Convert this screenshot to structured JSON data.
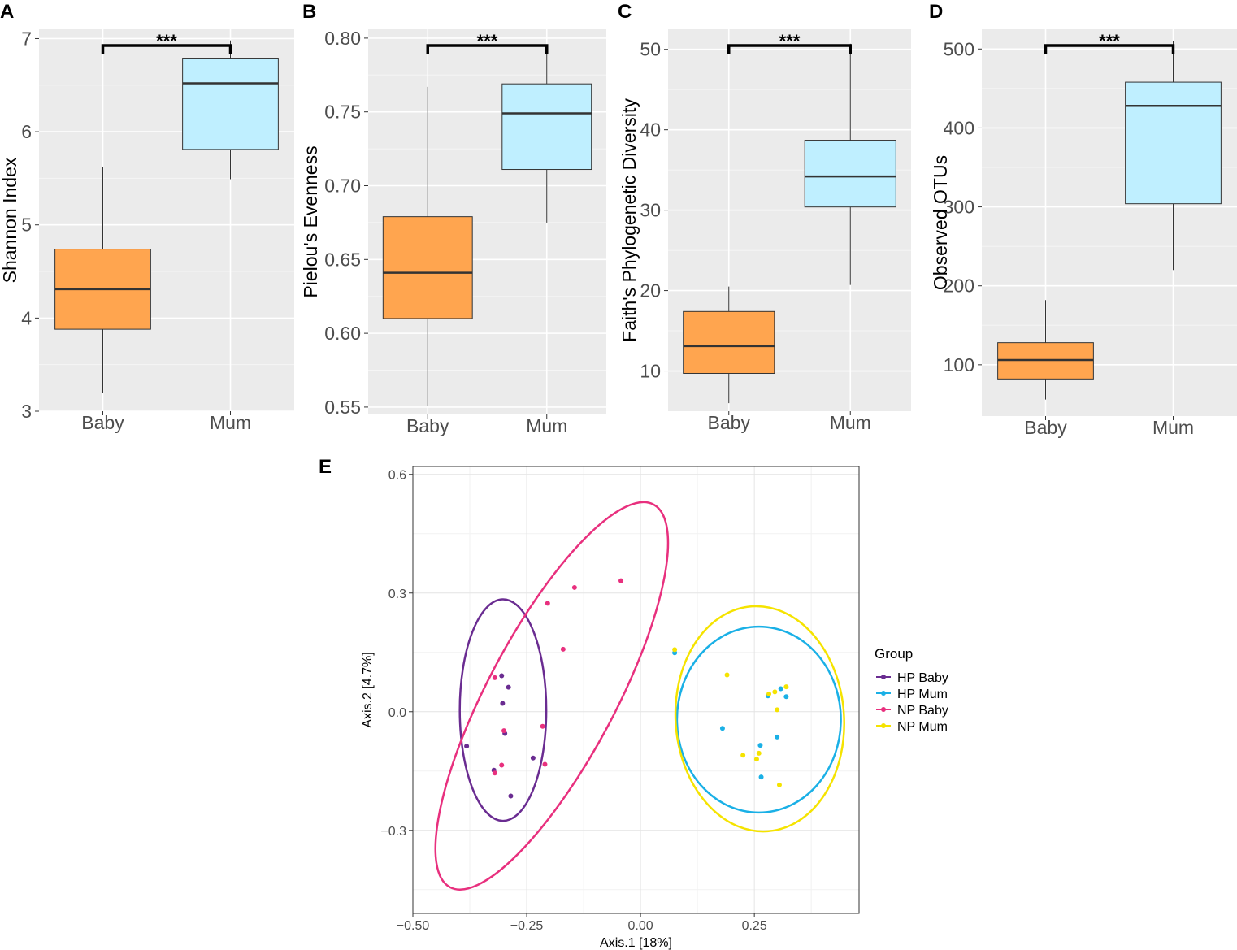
{
  "chart_data": [
    {
      "panel": "A",
      "type": "boxplot",
      "ylabel": "Shannon Index",
      "categories": [
        "Baby",
        "Mum"
      ],
      "yticks": [
        3,
        4,
        5,
        6,
        7
      ],
      "ylim": [
        3.0,
        7.1
      ],
      "boxes": [
        {
          "group": "Baby",
          "min": 3.2,
          "q1": 3.88,
          "median": 4.31,
          "q3": 4.74,
          "max": 5.62,
          "color": "#ffa54f"
        },
        {
          "group": "Mum",
          "min": 5.49,
          "q1": 5.81,
          "median": 6.52,
          "q3": 6.79,
          "max": 6.98,
          "color": "#bfefff"
        }
      ],
      "significance": "***"
    },
    {
      "panel": "B",
      "type": "boxplot",
      "ylabel": "Pielou's Evenness",
      "categories": [
        "Baby",
        "Mum"
      ],
      "yticks": [
        0.55,
        0.6,
        0.65,
        0.7,
        0.75,
        0.8
      ],
      "ytick_labels": [
        "0.55",
        "0.60",
        "0.65",
        "0.70",
        "0.75",
        "0.80"
      ],
      "ylim": [
        0.545,
        0.806
      ],
      "boxes": [
        {
          "group": "Baby",
          "min": 0.551,
          "q1": 0.61,
          "median": 0.641,
          "q3": 0.679,
          "max": 0.767,
          "color": "#ffa54f"
        },
        {
          "group": "Mum",
          "min": 0.675,
          "q1": 0.711,
          "median": 0.749,
          "q3": 0.769,
          "max": 0.792,
          "color": "#bfefff"
        }
      ],
      "significance": "***"
    },
    {
      "panel": "C",
      "type": "boxplot",
      "ylabel": "Faith's Phylogenetic Diversity",
      "categories": [
        "Baby",
        "Mum"
      ],
      "yticks": [
        10,
        20,
        30,
        40,
        50
      ],
      "ylim": [
        5.0,
        52.5
      ],
      "boxes": [
        {
          "group": "Baby",
          "min": 6.0,
          "q1": 9.7,
          "median": 13.1,
          "q3": 17.4,
          "max": 20.5,
          "color": "#ffa54f"
        },
        {
          "group": "Mum",
          "min": 20.7,
          "q1": 30.4,
          "median": 34.2,
          "q3": 38.7,
          "max": 50.7,
          "color": "#bfefff"
        }
      ],
      "significance": "***"
    },
    {
      "panel": "D",
      "type": "boxplot",
      "ylabel": "Observed OTUs",
      "categories": [
        "Baby",
        "Mum"
      ],
      "yticks": [
        100,
        200,
        300,
        400,
        500
      ],
      "ylim": [
        35,
        525
      ],
      "boxes": [
        {
          "group": "Baby",
          "min": 56,
          "q1": 82,
          "median": 106,
          "q3": 128,
          "max": 182,
          "color": "#ffa54f"
        },
        {
          "group": "Mum",
          "min": 220,
          "q1": 304,
          "median": 428,
          "q3": 458,
          "max": 510,
          "color": "#bfefff"
        }
      ],
      "significance": "***"
    },
    {
      "panel": "E",
      "type": "scatter",
      "xlabel": "Axis.1   [18%]",
      "ylabel": "Axis.2   [4.7%]",
      "xlim": [
        -0.5,
        0.48
      ],
      "ylim": [
        -0.51,
        0.62
      ],
      "xticks": [
        -0.5,
        -0.25,
        0.0,
        0.25
      ],
      "xtick_labels": [
        "−0.50",
        "−0.25",
        "0.00",
        "0.25"
      ],
      "yticks": [
        -0.3,
        0.0,
        0.3,
        0.6
      ],
      "ytick_labels": [
        "−0.3",
        "0.0",
        "0.3",
        "0.6"
      ],
      "legend_title": "Group",
      "series": [
        {
          "name": "HP Baby",
          "color": "#6a2c91",
          "points": [
            [
              -0.305,
              0.091
            ],
            [
              -0.29,
              0.062
            ],
            [
              -0.303,
              0.021
            ],
            [
              -0.382,
              -0.087
            ],
            [
              -0.298,
              -0.055
            ],
            [
              -0.236,
              -0.117
            ],
            [
              -0.322,
              -0.148
            ],
            [
              -0.285,
              -0.213
            ]
          ],
          "ellipse": {
            "cx": -0.302,
            "cy": 0.004,
            "rx": 0.095,
            "ry": 0.28,
            "angle": 0
          }
        },
        {
          "name": "HP Mum",
          "color": "#1ab0e6",
          "points": [
            [
              0.075,
              0.149
            ],
            [
              0.308,
              0.058
            ],
            [
              0.28,
              0.04
            ],
            [
              0.32,
              0.038
            ],
            [
              0.18,
              -0.042
            ],
            [
              0.3,
              -0.064
            ],
            [
              0.263,
              -0.085
            ],
            [
              0.265,
              -0.165
            ]
          ],
          "ellipse": {
            "cx": 0.26,
            "cy": -0.02,
            "rx": 0.18,
            "ry": 0.235,
            "angle": 0
          }
        },
        {
          "name": "NP Baby",
          "color": "#e8307e",
          "points": [
            [
              -0.043,
              0.331
            ],
            [
              -0.145,
              0.314
            ],
            [
              -0.204,
              0.274
            ],
            [
              -0.17,
              0.158
            ],
            [
              -0.32,
              0.086
            ],
            [
              -0.3,
              -0.048
            ],
            [
              -0.215,
              -0.037
            ],
            [
              -0.21,
              -0.133
            ],
            [
              -0.305,
              -0.135
            ],
            [
              -0.32,
              -0.155
            ]
          ],
          "ellipse": {
            "cx": -0.195,
            "cy": 0.04,
            "rx": 0.14,
            "ry": 0.548,
            "angle": 28
          }
        },
        {
          "name": "NP Mum",
          "color": "#f5e300",
          "points": [
            [
              0.075,
              0.157
            ],
            [
              0.19,
              0.093
            ],
            [
              0.32,
              0.063
            ],
            [
              0.295,
              0.05
            ],
            [
              0.282,
              0.045
            ],
            [
              0.3,
              0.005
            ],
            [
              0.225,
              -0.11
            ],
            [
              0.255,
              -0.12
            ],
            [
              0.26,
              -0.105
            ],
            [
              0.305,
              -0.185
            ]
          ],
          "ellipse": {
            "cx": 0.262,
            "cy": -0.018,
            "rx": 0.185,
            "ry": 0.285,
            "angle": -4
          }
        }
      ]
    }
  ]
}
